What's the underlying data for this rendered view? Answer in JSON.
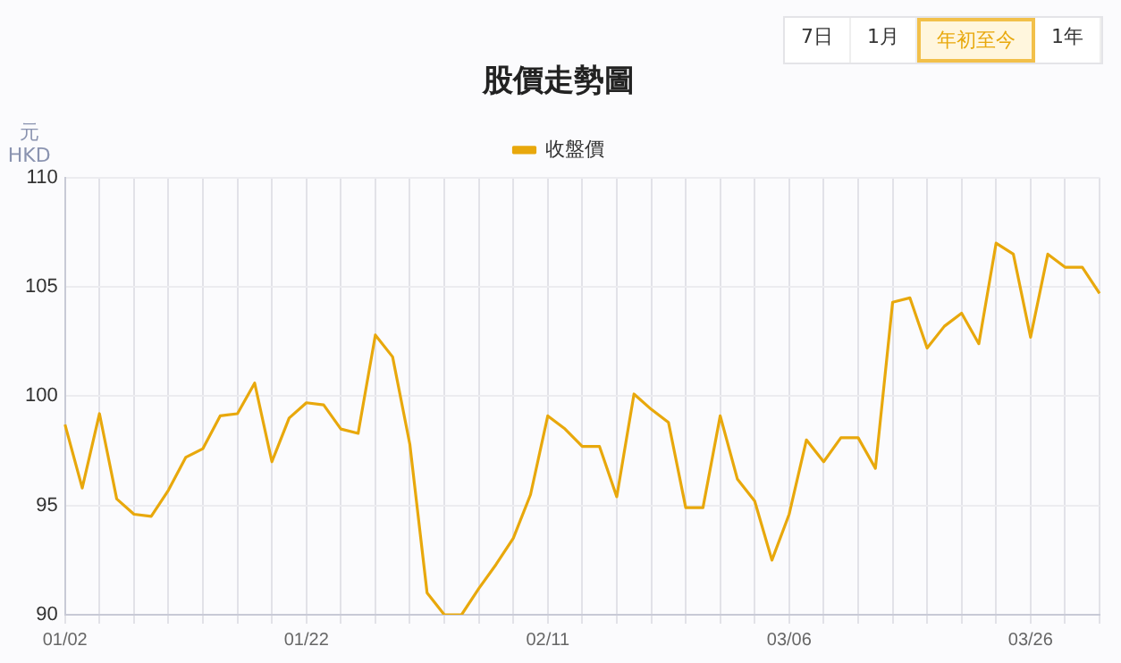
{
  "chart_data": {
    "type": "line",
    "title": "股價走勢圖",
    "ylabel": "元\nHKD",
    "annotations": [
      "7日",
      "1月",
      "年初至今",
      "1年"
    ],
    "categories": [
      "01/02",
      null,
      null,
      null,
      null,
      null,
      null,
      null,
      null,
      null,
      null,
      null,
      null,
      null,
      "01/22",
      null,
      null,
      null,
      null,
      null,
      null,
      null,
      null,
      null,
      null,
      null,
      null,
      null,
      "02/11",
      null,
      null,
      null,
      null,
      null,
      null,
      null,
      null,
      null,
      null,
      null,
      null,
      null,
      "03/06",
      null,
      null,
      null,
      null,
      null,
      null,
      null,
      null,
      null,
      null,
      null,
      null,
      null,
      "03/26",
      null,
      null,
      null,
      null
    ],
    "series": [
      {
        "name": "收盤價",
        "color": "#e8a80c",
        "values": [
          98.7,
          95.8,
          99.2,
          95.3,
          94.6,
          94.5,
          95.7,
          97.2,
          97.6,
          99.1,
          99.2,
          100.6,
          97.0,
          99.0,
          99.7,
          99.6,
          98.5,
          98.3,
          102.8,
          101.8,
          97.8,
          91.0,
          90.0,
          90.0,
          91.2,
          92.3,
          93.5,
          95.5,
          99.1,
          98.5,
          97.7,
          97.7,
          95.4,
          100.1,
          99.4,
          98.8,
          94.9,
          94.9,
          99.1,
          96.2,
          95.2,
          92.5,
          94.6,
          98.0,
          97.0,
          98.1,
          98.1,
          96.7,
          104.3,
          104.5,
          102.2,
          103.2,
          103.8,
          102.4,
          107.0,
          106.5,
          102.7,
          106.5,
          105.9,
          105.9,
          104.7
        ]
      }
    ],
    "ylim": [
      90,
      110
    ],
    "yticks": [
      90,
      95,
      100,
      105,
      110
    ],
    "grid": true,
    "legend": "top",
    "marker": "none",
    "line_style": "solid"
  }
}
